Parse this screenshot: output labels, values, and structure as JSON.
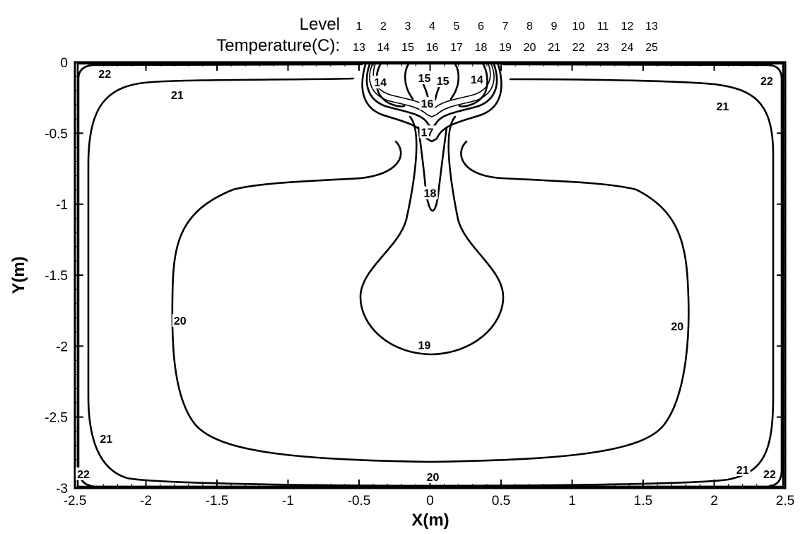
{
  "chart_data": {
    "type": "contour",
    "xlabel": "X(m)",
    "ylabel": "Y(m)",
    "xlim": [
      -2.5,
      2.5
    ],
    "ylim": [
      -3,
      0
    ],
    "xticks": [
      "-2.5",
      "-2",
      "-1.5",
      "-1",
      "-0.5",
      "0",
      "0.5",
      "1",
      "1.5",
      "2",
      "2.5"
    ],
    "yticks": [
      "0",
      "-0.5",
      "-1",
      "-1.5",
      "-2",
      "-2.5",
      "-3"
    ],
    "legend": {
      "level_label": "Level",
      "temperature_label": "Temperature(C):",
      "levels": [
        "1",
        "2",
        "3",
        "4",
        "5",
        "6",
        "7",
        "8",
        "9",
        "10",
        "11",
        "12",
        "13"
      ],
      "temperatures": [
        "13",
        "14",
        "15",
        "16",
        "17",
        "18",
        "19",
        "20",
        "21",
        "22",
        "23",
        "24",
        "25"
      ]
    },
    "contour_labels": [
      {
        "text": "22",
        "x": -2.29,
        "y": -0.08
      },
      {
        "text": "21",
        "x": -1.78,
        "y": -0.23
      },
      {
        "text": "14",
        "x": -0.35,
        "y": -0.14
      },
      {
        "text": "15",
        "x": -0.04,
        "y": -0.11
      },
      {
        "text": "15",
        "x": 0.09,
        "y": -0.13
      },
      {
        "text": "14",
        "x": 0.33,
        "y": -0.12
      },
      {
        "text": "16",
        "x": -0.02,
        "y": -0.29
      },
      {
        "text": "17",
        "x": -0.02,
        "y": -0.49
      },
      {
        "text": "18",
        "x": 0.0,
        "y": -0.92
      },
      {
        "text": "22",
        "x": 2.37,
        "y": -0.13
      },
      {
        "text": "21",
        "x": 2.06,
        "y": -0.31
      },
      {
        "text": "20",
        "x": -1.76,
        "y": -1.82
      },
      {
        "text": "20",
        "x": 1.74,
        "y": -1.86
      },
      {
        "text": "19",
        "x": -0.04,
        "y": -1.99
      },
      {
        "text": "21",
        "x": -2.28,
        "y": -2.65
      },
      {
        "text": "21",
        "x": 2.2,
        "y": -2.87
      },
      {
        "text": "22",
        "x": -2.44,
        "y": -2.9
      },
      {
        "text": "22",
        "x": 2.39,
        "y": -2.9
      },
      {
        "text": "20",
        "x": 0.02,
        "y": -2.92
      }
    ]
  }
}
